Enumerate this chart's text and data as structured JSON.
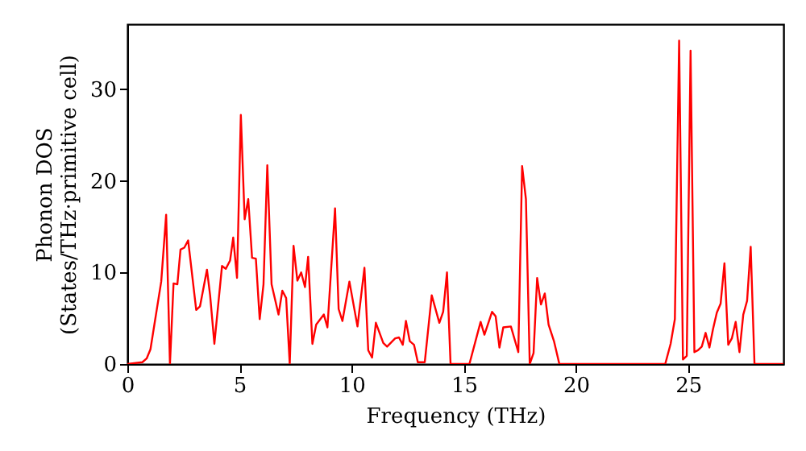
{
  "chart_data": {
    "type": "line",
    "xlabel": "Frequency (THz)",
    "ylabel": "Phonon DOS\n(States/THz·primitive cell)",
    "xlim": [
      0,
      29.25
    ],
    "ylim": [
      0,
      37.1
    ],
    "xticks": [
      0,
      5,
      10,
      15,
      20,
      25
    ],
    "yticks": [
      0,
      10,
      20,
      30
    ],
    "grid": false,
    "marker": "none",
    "line_style": "solid",
    "series": [
      {
        "color": "#ff0000",
        "x": [
          0,
          0.67,
          0.86,
          1.03,
          1.51,
          1.73,
          1.9,
          2.06,
          2.23,
          2.37,
          2.54,
          2.71,
          3.07,
          3.24,
          3.55,
          3.69,
          3.88,
          4.22,
          4.39,
          4.58,
          4.72,
          4.89,
          5.06,
          5.23,
          5.39,
          5.56,
          5.73,
          5.9,
          6.07,
          6.24,
          6.43,
          6.74,
          6.91,
          7.08,
          7.24,
          7.41,
          7.58,
          7.75,
          7.92,
          8.06,
          8.25,
          8.42,
          8.76,
          8.92,
          9.26,
          9.42,
          9.59,
          9.9,
          10.26,
          10.57,
          10.74,
          10.91,
          11.08,
          11.41,
          11.58,
          11.94,
          12.11,
          12.28,
          12.42,
          12.59,
          12.78,
          12.95,
          13.26,
          13.57,
          13.91,
          14.08,
          14.25,
          14.41,
          15.25,
          15.75,
          15.92,
          16.26,
          16.42,
          16.59,
          16.76,
          17.1,
          17.43,
          17.6,
          17.77,
          17.94,
          18.11,
          18.27,
          18.44,
          18.61,
          18.78,
          19.02,
          19.26,
          23.98,
          24.22,
          24.41,
          24.6,
          24.77,
          24.94,
          25.11,
          25.28,
          25.44,
          25.61,
          25.78,
          25.95,
          26.11,
          26.28,
          26.45,
          26.62,
          26.79,
          26.95,
          27.12,
          27.29,
          27.46,
          27.63,
          27.79,
          27.96,
          29.25
        ],
        "values": [
          0,
          0.2,
          0.6,
          1.6,
          9.0,
          16.3,
          0,
          8.8,
          8.7,
          12.5,
          12.7,
          13.5,
          5.9,
          6.3,
          10.3,
          7.5,
          2.2,
          10.7,
          10.4,
          11.3,
          13.8,
          9.4,
          27.2,
          15.8,
          18.0,
          11.6,
          11.5,
          4.9,
          8.7,
          21.7,
          8.7,
          5.4,
          8.0,
          7.2,
          0,
          12.9,
          9.1,
          10.0,
          8.4,
          11.7,
          2.2,
          4.3,
          5.4,
          4.0,
          17.0,
          6.0,
          4.7,
          9.0,
          4.1,
          10.5,
          1.5,
          0.7,
          4.5,
          2.3,
          1.9,
          2.8,
          2.9,
          2.1,
          4.7,
          2.5,
          2.1,
          0.2,
          0.2,
          7.5,
          4.5,
          5.7,
          10.0,
          0,
          0,
          4.6,
          3.2,
          5.7,
          5.2,
          1.8,
          4.0,
          4.1,
          1.3,
          21.6,
          18.0,
          0,
          1.2,
          9.4,
          6.5,
          7.7,
          4.3,
          2.5,
          0,
          0,
          2.2,
          4.9,
          35.3,
          0.5,
          0.9,
          34.2,
          1.3,
          1.5,
          1.9,
          3.4,
          1.8,
          3.8,
          5.6,
          6.6,
          11.0,
          2.1,
          2.8,
          4.6,
          1.3,
          5.4,
          6.9,
          12.8,
          0,
          0
        ]
      }
    ]
  }
}
